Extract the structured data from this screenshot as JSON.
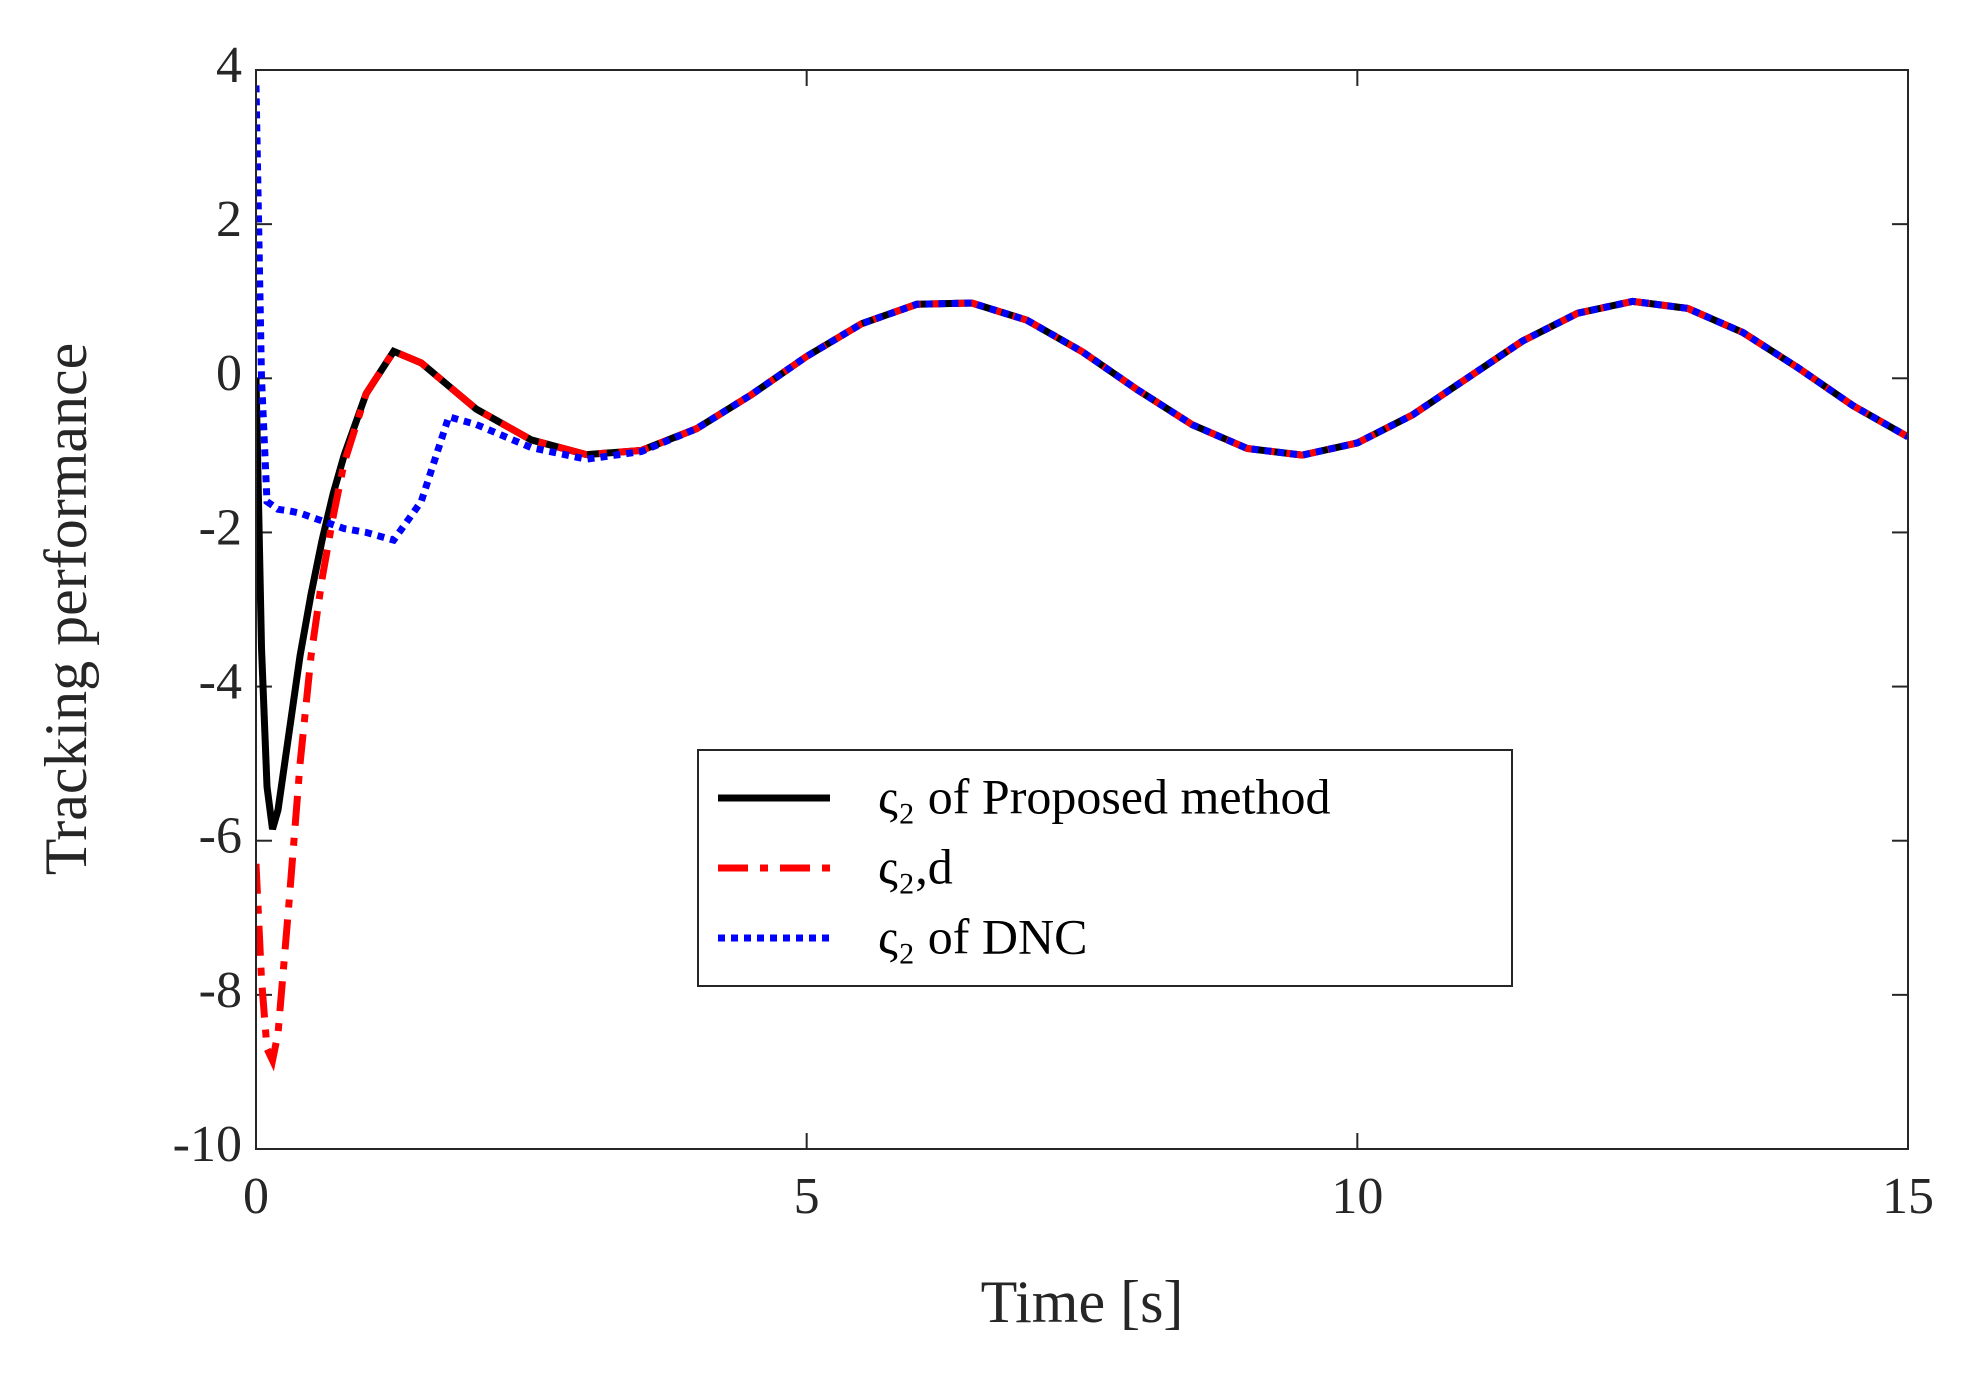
{
  "chart_data": {
    "type": "line",
    "x_label": "Time [s]",
    "y_label": "Tracking performance",
    "x": [
      0,
      0.05,
      0.1,
      0.15,
      0.2,
      0.3,
      0.4,
      0.5,
      0.6,
      0.7,
      0.8,
      1.0,
      1.25,
      1.5,
      1.75,
      2,
      2.5,
      3,
      3.5,
      4,
      4.5,
      5,
      5.5,
      6,
      6.5,
      7,
      7.5,
      8,
      8.5,
      9,
      9.5,
      10,
      10.5,
      11,
      11.5,
      12,
      12.5,
      13,
      13.5,
      14,
      14.5,
      15
    ],
    "series": [
      {
        "name": "ς₂ of Proposed method",
        "color": "#000000",
        "style": "solid",
        "values": [
          0,
          -3.5,
          -5.3,
          -5.85,
          -5.6,
          -4.6,
          -3.6,
          -2.8,
          -2.1,
          -1.5,
          -1.0,
          -0.2,
          0.35,
          0.2,
          -0.1,
          -0.4,
          -0.8,
          -0.99,
          -0.936,
          -0.654,
          -0.211,
          0.284,
          0.709,
          0.96,
          0.977,
          0.754,
          0.347,
          -0.146,
          -0.602,
          -0.911,
          -0.997,
          -0.839,
          -0.476,
          0.004,
          0.483,
          0.844,
          0.998,
          0.907,
          0.595,
          0.137,
          -0.355,
          -0.76
        ]
      },
      {
        "name": "ς₂,d",
        "color": "#ff0000",
        "style": "dashdot",
        "values": [
          -6.3,
          -7.8,
          -8.7,
          -8.85,
          -8.5,
          -6.8,
          -5.0,
          -3.6,
          -2.6,
          -1.8,
          -1.1,
          -0.2,
          0.35,
          0.2,
          -0.1,
          -0.4,
          -0.8,
          -0.99,
          -0.936,
          -0.654,
          -0.211,
          0.284,
          0.709,
          0.96,
          0.977,
          0.754,
          0.347,
          -0.146,
          -0.602,
          -0.911,
          -0.997,
          -0.839,
          -0.476,
          0.004,
          0.483,
          0.844,
          0.998,
          0.907,
          0.595,
          0.137,
          -0.355,
          -0.76
        ]
      },
      {
        "name": "ς₂ of DNC",
        "color": "#0000ff",
        "style": "dotted",
        "values": [
          3.8,
          0,
          -1.6,
          -1.65,
          -1.7,
          -1.72,
          -1.75,
          -1.8,
          -1.85,
          -1.9,
          -1.95,
          -2.0,
          -2.1,
          -1.6,
          -0.5,
          -0.6,
          -0.9,
          -1.05,
          -0.95,
          -0.654,
          -0.211,
          0.284,
          0.709,
          0.96,
          0.977,
          0.754,
          0.347,
          -0.146,
          -0.602,
          -0.911,
          -0.997,
          -0.839,
          -0.476,
          0.004,
          0.483,
          0.844,
          0.998,
          0.907,
          0.595,
          0.137,
          -0.355,
          -0.76
        ]
      }
    ],
    "xlim": [
      0,
      15
    ],
    "xticks": [
      0,
      5,
      10,
      15
    ],
    "ylim": [
      -10,
      4
    ],
    "yticks": [
      -10,
      -8,
      -6,
      -4,
      -2,
      0,
      2,
      4
    ],
    "grid": false
  }
}
